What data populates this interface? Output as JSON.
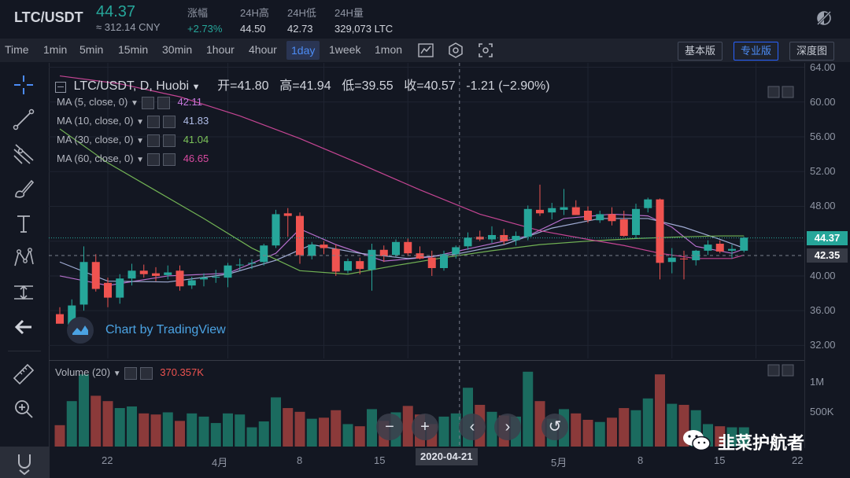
{
  "ticker": {
    "pair": "LTC/USDT",
    "price": "44.37",
    "cny": "≈ 312.14 CNY",
    "stats": [
      {
        "label": "涨幅",
        "value": "+2.73%"
      },
      {
        "label": "24H高",
        "value": "44.50"
      },
      {
        "label": "24H低",
        "value": "42.73"
      },
      {
        "label": "24H量",
        "value": "329,073 LTC"
      }
    ]
  },
  "toolbar": {
    "intervals": [
      "Time",
      "1min",
      "5min",
      "15min",
      "30min",
      "1hour",
      "4hour",
      "1day",
      "1week",
      "1mon"
    ],
    "active_interval": "1day",
    "modes": [
      "基本版",
      "专业版",
      "深度图"
    ],
    "active_mode": "专业版"
  },
  "legend": {
    "title": "LTC/USDT, D, Huobi",
    "open_label": "开=",
    "open": "41.80",
    "high_label": "高=",
    "high": "41.94",
    "low_label": "低=",
    "low": "39.55",
    "close_label": "收=",
    "close": "40.57",
    "change": "-1.21 (−2.90%)",
    "ma": [
      {
        "label": "MA (5, close, 0)",
        "value": "42.11",
        "color": "#c678dd"
      },
      {
        "label": "MA (10, close, 0)",
        "value": "41.83",
        "color": "#b0bde8"
      },
      {
        "label": "MA (30, close, 0)",
        "value": "41.04",
        "color": "#7cc35a"
      },
      {
        "label": "MA (60, close, 0)",
        "value": "46.65",
        "color": "#d84aa0"
      }
    ],
    "volume_label": "Volume (20)",
    "volume_value": "370.357K"
  },
  "watermark": "Chart by TradingView",
  "yaxis": {
    "ticks": [
      "64.00",
      "60.00",
      "56.00",
      "52.00",
      "48.00",
      "44.00",
      "40.00",
      "36.00",
      "32.00"
    ],
    "current_price": "44.37",
    "cursor_price": "42.35",
    "volume_ticks": [
      "1M",
      "500K"
    ]
  },
  "xaxis": {
    "ticks": [
      "22",
      "4月",
      "8",
      "15",
      "5月",
      "8",
      "15",
      "22"
    ],
    "cursor_date": "2020-04-21"
  },
  "nav": {
    "zoom_out": "−",
    "zoom_in": "+",
    "prev": "‹",
    "next": "›",
    "reset": "↺"
  },
  "brand": "韭菜护航者",
  "colors": {
    "up": "#26a69a",
    "down": "#ef5350",
    "bg": "#131722",
    "accent": "#2962ff"
  },
  "chart_data": {
    "type": "candlestick",
    "ylim": [
      30.5,
      64.5
    ],
    "candles": [
      {
        "o": 35.6,
        "h": 36.4,
        "l": 34.6,
        "c": 34.5
      },
      {
        "o": 34.4,
        "h": 37.3,
        "l": 34.1,
        "c": 36.6
      },
      {
        "o": 36.7,
        "h": 43.4,
        "l": 36.0,
        "c": 41.6
      },
      {
        "o": 41.6,
        "h": 42.5,
        "l": 38.2,
        "c": 38.5
      },
      {
        "o": 39.2,
        "h": 39.8,
        "l": 36.4,
        "c": 37.5
      },
      {
        "o": 37.5,
        "h": 40.2,
        "l": 36.8,
        "c": 39.7
      },
      {
        "o": 39.7,
        "h": 41.4,
        "l": 38.9,
        "c": 40.6
      },
      {
        "o": 40.6,
        "h": 41.3,
        "l": 39.8,
        "c": 40.2
      },
      {
        "o": 40.3,
        "h": 41.0,
        "l": 39.4,
        "c": 40.0
      },
      {
        "o": 40.1,
        "h": 41.2,
        "l": 39.6,
        "c": 40.4
      },
      {
        "o": 40.6,
        "h": 41.2,
        "l": 38.3,
        "c": 38.8
      },
      {
        "o": 38.9,
        "h": 39.9,
        "l": 38.5,
        "c": 39.5
      },
      {
        "o": 39.6,
        "h": 40.3,
        "l": 38.8,
        "c": 39.8
      },
      {
        "o": 39.8,
        "h": 40.7,
        "l": 39.2,
        "c": 39.9
      },
      {
        "o": 39.8,
        "h": 41.5,
        "l": 38.7,
        "c": 41.2
      },
      {
        "o": 41.3,
        "h": 42.0,
        "l": 40.6,
        "c": 41.3
      },
      {
        "o": 41.4,
        "h": 41.9,
        "l": 40.8,
        "c": 41.5
      },
      {
        "o": 41.6,
        "h": 43.7,
        "l": 41.2,
        "c": 43.5
      },
      {
        "o": 43.5,
        "h": 47.6,
        "l": 43.2,
        "c": 47.1
      },
      {
        "o": 47.2,
        "h": 47.8,
        "l": 44.5,
        "c": 46.9
      },
      {
        "o": 46.9,
        "h": 47.3,
        "l": 41.4,
        "c": 42.4
      },
      {
        "o": 42.3,
        "h": 43.9,
        "l": 41.9,
        "c": 43.6
      },
      {
        "o": 43.6,
        "h": 44.0,
        "l": 42.5,
        "c": 43.2
      },
      {
        "o": 43.1,
        "h": 43.6,
        "l": 40.0,
        "c": 40.5
      },
      {
        "o": 40.6,
        "h": 42.0,
        "l": 40.3,
        "c": 41.7
      },
      {
        "o": 41.7,
        "h": 42.1,
        "l": 40.2,
        "c": 40.8
      },
      {
        "o": 40.7,
        "h": 43.7,
        "l": 38.3,
        "c": 43.0
      },
      {
        "o": 43.0,
        "h": 43.5,
        "l": 41.6,
        "c": 42.3
      },
      {
        "o": 42.4,
        "h": 44.2,
        "l": 42.2,
        "c": 43.9
      },
      {
        "o": 43.9,
        "h": 44.3,
        "l": 42.3,
        "c": 42.6
      },
      {
        "o": 42.6,
        "h": 43.4,
        "l": 41.9,
        "c": 42.0
      },
      {
        "o": 42.1,
        "h": 42.9,
        "l": 40.0,
        "c": 40.9
      },
      {
        "o": 40.9,
        "h": 42.9,
        "l": 40.6,
        "c": 42.5
      },
      {
        "o": 42.5,
        "h": 43.5,
        "l": 42.0,
        "c": 43.3
      },
      {
        "o": 43.4,
        "h": 45.0,
        "l": 43.0,
        "c": 44.4
      },
      {
        "o": 44.5,
        "h": 45.2,
        "l": 44.0,
        "c": 44.2
      },
      {
        "o": 44.2,
        "h": 45.7,
        "l": 43.8,
        "c": 44.7
      },
      {
        "o": 44.7,
        "h": 45.4,
        "l": 43.6,
        "c": 44.0
      },
      {
        "o": 44.1,
        "h": 45.1,
        "l": 43.5,
        "c": 44.6
      },
      {
        "o": 44.5,
        "h": 48.1,
        "l": 44.1,
        "c": 47.7
      },
      {
        "o": 47.6,
        "h": 50.5,
        "l": 46.9,
        "c": 47.2
      },
      {
        "o": 47.3,
        "h": 48.4,
        "l": 46.5,
        "c": 47.8
      },
      {
        "o": 47.6,
        "h": 50.0,
        "l": 47.0,
        "c": 47.9
      },
      {
        "o": 47.9,
        "h": 48.7,
        "l": 47.0,
        "c": 47.0
      },
      {
        "o": 47.5,
        "h": 48.0,
        "l": 46.1,
        "c": 46.4
      },
      {
        "o": 46.4,
        "h": 47.5,
        "l": 46.1,
        "c": 47.1
      },
      {
        "o": 47.1,
        "h": 47.9,
        "l": 45.8,
        "c": 46.3
      },
      {
        "o": 46.5,
        "h": 47.5,
        "l": 44.5,
        "c": 44.6
      },
      {
        "o": 44.7,
        "h": 48.3,
        "l": 44.3,
        "c": 47.7
      },
      {
        "o": 47.8,
        "h": 49.0,
        "l": 47.3,
        "c": 48.8
      },
      {
        "o": 48.8,
        "h": 48.9,
        "l": 39.6,
        "c": 41.5
      },
      {
        "o": 41.6,
        "h": 43.2,
        "l": 40.3,
        "c": 42.1
      },
      {
        "o": 42.0,
        "h": 42.9,
        "l": 39.6,
        "c": 41.9
      },
      {
        "o": 41.8,
        "h": 43.0,
        "l": 41.2,
        "c": 42.9
      },
      {
        "o": 42.9,
        "h": 44.1,
        "l": 42.4,
        "c": 43.6
      },
      {
        "o": 43.7,
        "h": 44.1,
        "l": 42.6,
        "c": 42.8
      },
      {
        "o": 42.9,
        "h": 43.6,
        "l": 42.0,
        "c": 43.1
      },
      {
        "o": 42.9,
        "h": 44.5,
        "l": 42.7,
        "c": 44.4
      }
    ],
    "volume": [
      400,
      850,
      1350,
      950,
      850,
      720,
      750,
      620,
      600,
      640,
      480,
      620,
      560,
      440,
      620,
      600,
      360,
      470,
      920,
      720,
      650,
      520,
      540,
      680,
      420,
      380,
      700,
      480,
      640,
      760,
      600,
      420,
      560,
      620,
      1100,
      780,
      650,
      580,
      560,
      1400,
      850,
      520,
      700,
      620,
      500,
      460,
      540,
      720,
      680,
      900,
      1350,
      800,
      780,
      680,
      420,
      380,
      360,
      360
    ],
    "ma": [
      {
        "name": "MA (5, close, 0)",
        "color": "#c678dd",
        "values": [
          [
            0,
            40.0
          ],
          [
            4,
            38.9
          ],
          [
            9,
            40.0
          ],
          [
            14,
            40.3
          ],
          [
            18,
            42.6
          ],
          [
            20,
            45.4
          ],
          [
            23,
            43.6
          ],
          [
            27,
            41.7
          ],
          [
            31,
            42.2
          ],
          [
            35,
            43.4
          ],
          [
            39,
            44.6
          ],
          [
            42,
            46.6
          ],
          [
            46,
            47.1
          ],
          [
            49,
            46.9
          ],
          [
            51,
            45.6
          ],
          [
            53,
            43.4
          ],
          [
            56,
            42.6
          ],
          [
            57,
            43.1
          ]
        ]
      },
      {
        "name": "MA (10, close, 0)",
        "color": "#b0bde8",
        "values": [
          [
            0,
            41.6
          ],
          [
            4,
            39.4
          ],
          [
            9,
            39.3
          ],
          [
            14,
            40.2
          ],
          [
            18,
            41.8
          ],
          [
            21,
            43.6
          ],
          [
            25,
            42.6
          ],
          [
            29,
            42.0
          ],
          [
            33,
            42.5
          ],
          [
            37,
            43.6
          ],
          [
            41,
            45.5
          ],
          [
            45,
            46.6
          ],
          [
            49,
            46.6
          ],
          [
            52,
            45.6
          ],
          [
            55,
            44.2
          ],
          [
            57,
            43.2
          ]
        ]
      },
      {
        "name": "MA (30, close, 0)",
        "color": "#7cc35a",
        "values": [
          [
            0,
            56.9
          ],
          [
            4,
            53.0
          ],
          [
            8,
            49.8
          ],
          [
            12,
            46.6
          ],
          [
            16,
            43.2
          ],
          [
            20,
            40.6
          ],
          [
            24,
            40.2
          ],
          [
            28,
            41.2
          ],
          [
            32,
            42.1
          ],
          [
            36,
            42.9
          ],
          [
            40,
            43.6
          ],
          [
            44,
            44.0
          ],
          [
            48,
            44.3
          ],
          [
            52,
            44.5
          ],
          [
            55,
            44.6
          ],
          [
            57,
            44.6
          ]
        ]
      },
      {
        "name": "MA (60, close, 0)",
        "color": "#d84aa0",
        "values": [
          [
            0,
            63.0
          ],
          [
            5,
            62.1
          ],
          [
            10,
            60.6
          ],
          [
            15,
            58.4
          ],
          [
            20,
            55.8
          ],
          [
            25,
            52.9
          ],
          [
            30,
            49.9
          ],
          [
            35,
            47.1
          ],
          [
            40,
            45.2
          ],
          [
            44,
            44.2
          ],
          [
            47,
            43.5
          ],
          [
            50,
            42.6
          ],
          [
            53,
            42.0
          ],
          [
            56,
            42.0
          ],
          [
            57,
            42.4
          ]
        ]
      }
    ]
  }
}
